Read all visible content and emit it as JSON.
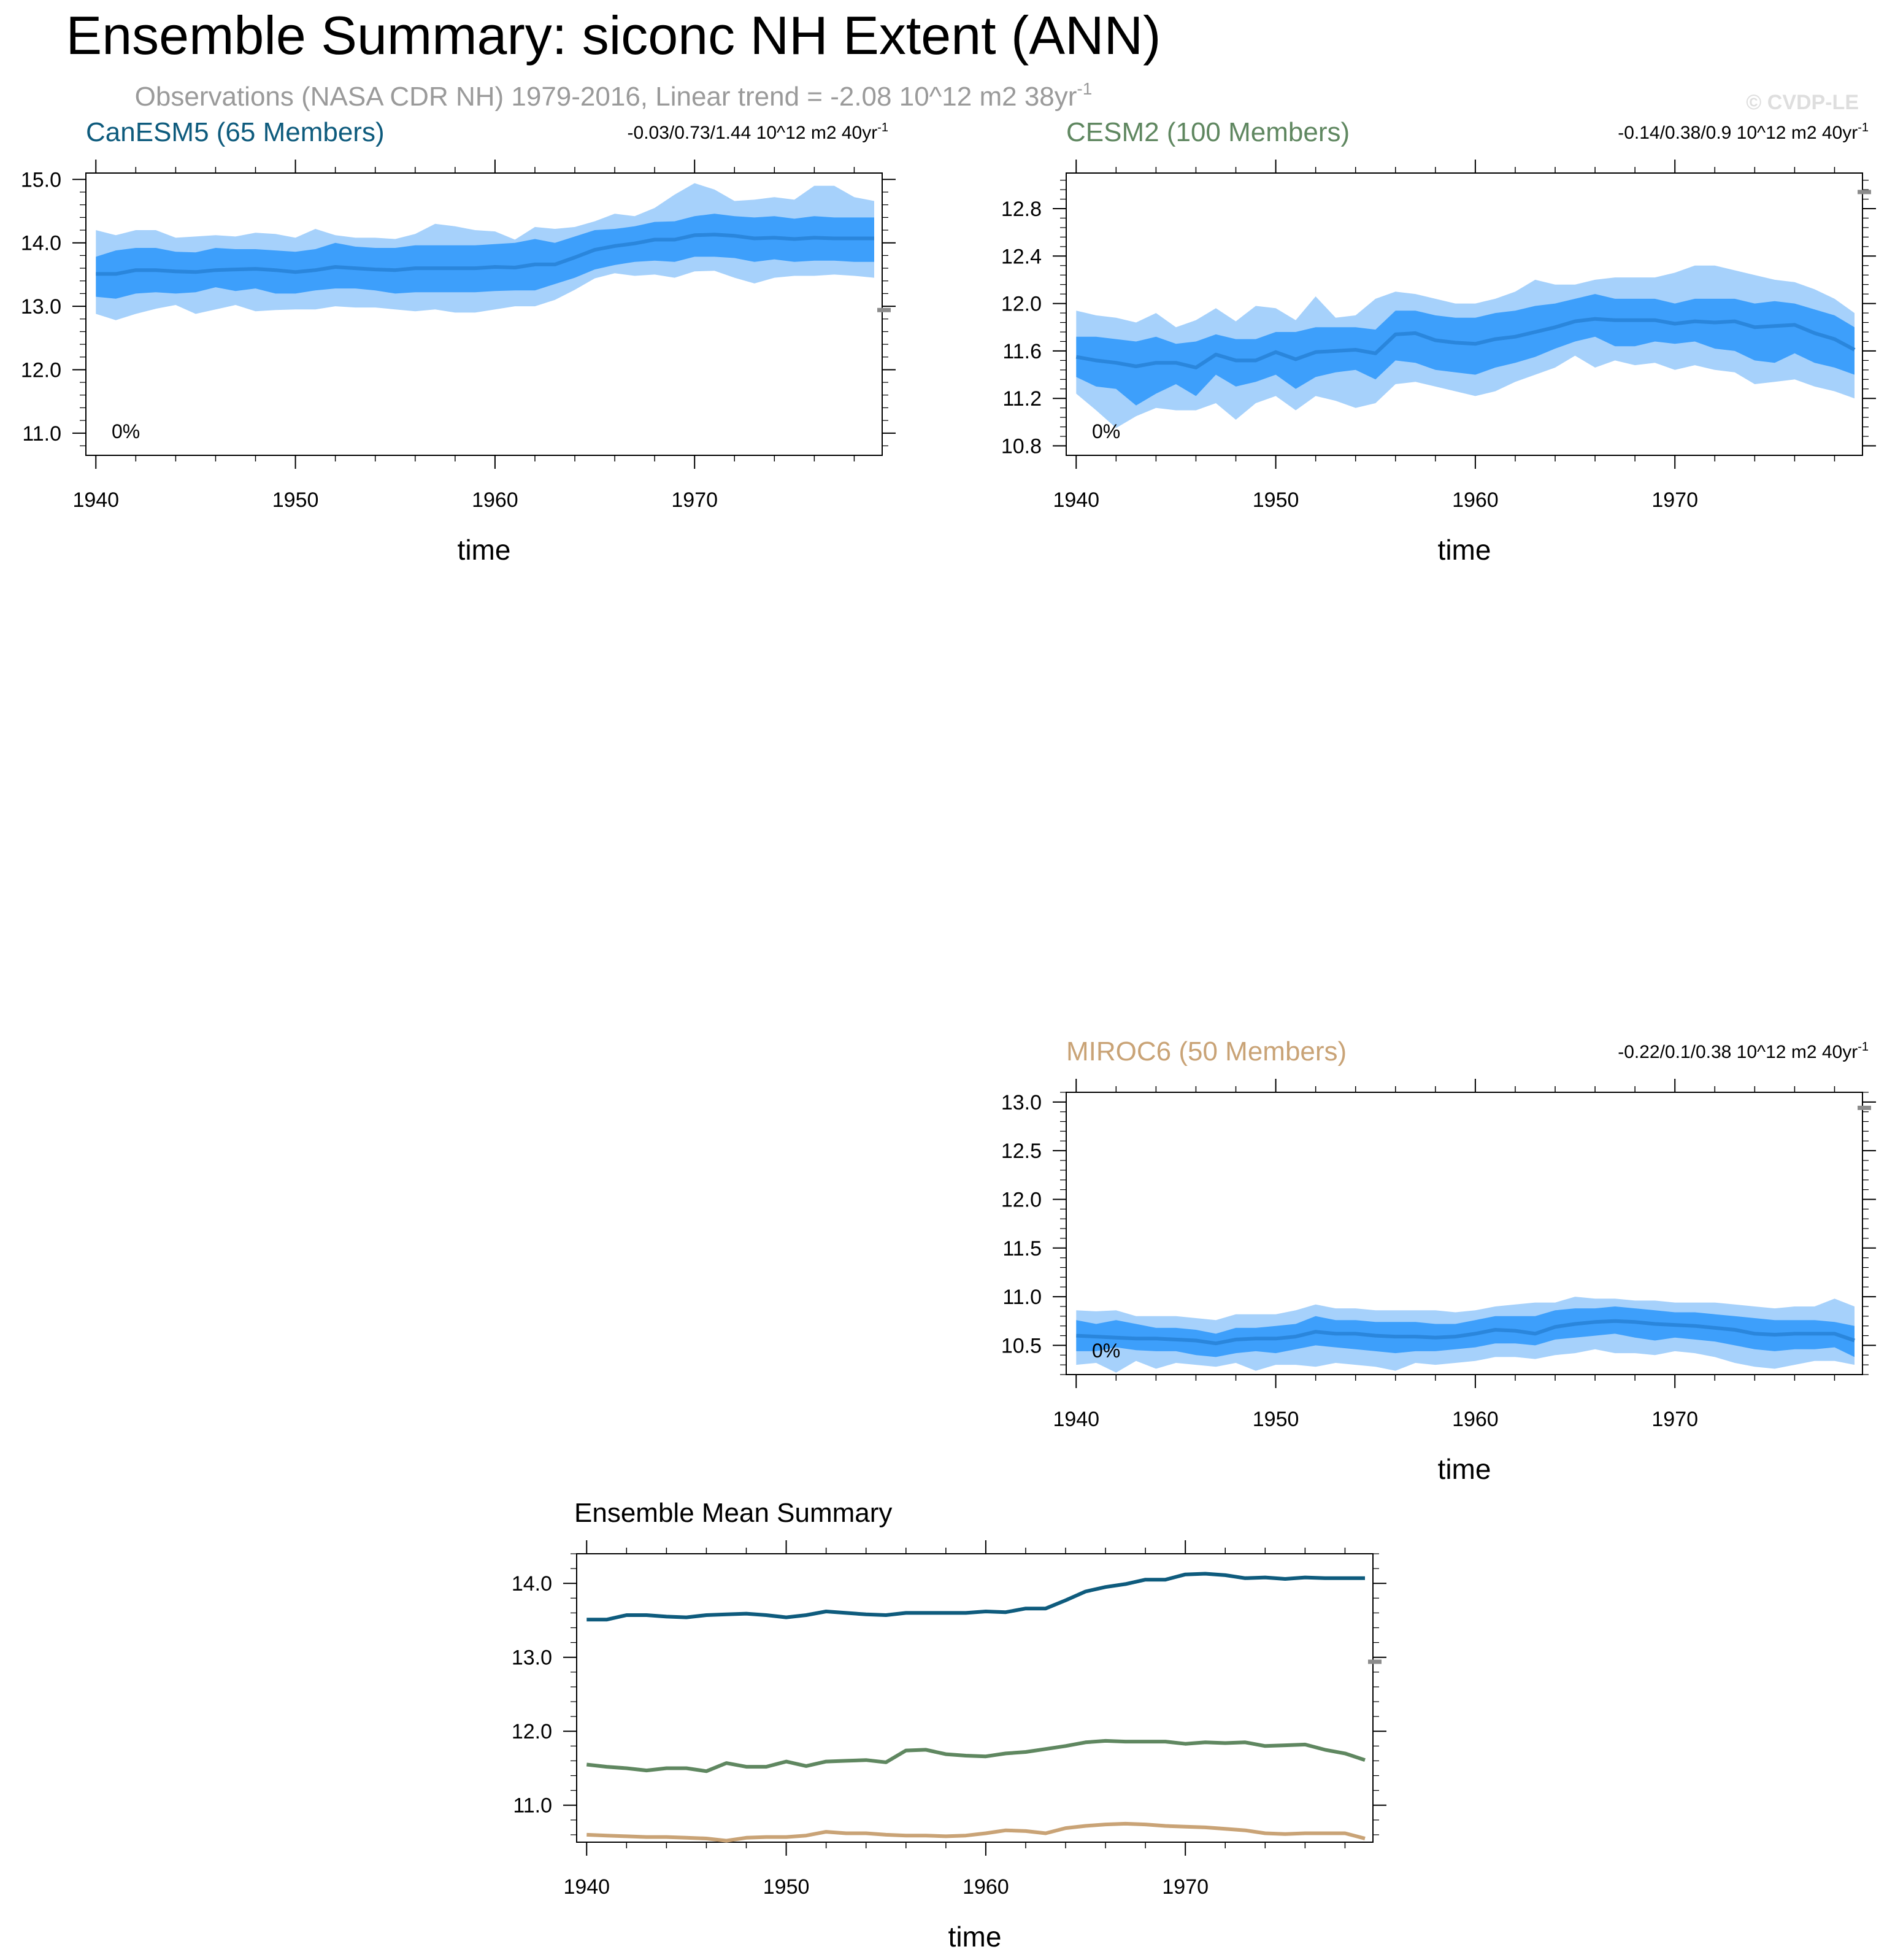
{
  "header": {
    "title": "Ensemble Summary: siconc NH Extent (ANN)",
    "subtitle": "Observations (NASA CDR NH) 1979-2016, Linear trend = -2.08 10^12 m2 38yr",
    "subtitle_sup": "-1",
    "copyright": "© CVDP-LE"
  },
  "colors": {
    "outer_band": "#a6d1fb",
    "inner_band": "#3d9ffb",
    "mean_line": "#2a86dc",
    "obs_marker": "#8c8c8c",
    "CanESM5": "#0e5b7d",
    "CESM2": "#5f8760",
    "MIROC6": "#c9a376"
  },
  "chart_data": [
    {
      "type": "area",
      "model": "CanESM5",
      "title": "CanESM5 (65 Members)",
      "trend_text": "-0.03/0.73/1.44 10^12 m2 40yr",
      "trend_sup": "-1",
      "percent_label": "0%",
      "xlabel": "time",
      "xlim": [
        1939.5,
        1979.4
      ],
      "ylim": [
        10.65,
        15.1
      ],
      "xticks": [
        1940,
        1950,
        1960,
        1970
      ],
      "yticks": [
        11.0,
        12.0,
        13.0,
        14.0,
        15.0
      ],
      "ytick_labels": [
        "11.0",
        "12.0",
        "13.0",
        "14.0",
        "15.0"
      ],
      "obs_value": 12.94,
      "x": [
        1940,
        1941,
        1942,
        1943,
        1944,
        1945,
        1946,
        1947,
        1948,
        1949,
        1950,
        1951,
        1952,
        1953,
        1954,
        1955,
        1956,
        1957,
        1958,
        1959,
        1960,
        1961,
        1962,
        1963,
        1964,
        1965,
        1966,
        1967,
        1968,
        1969,
        1970,
        1971,
        1972,
        1973,
        1974,
        1975,
        1976,
        1977,
        1978,
        1979
      ],
      "mean": [
        13.51,
        13.51,
        13.57,
        13.57,
        13.55,
        13.54,
        13.57,
        13.58,
        13.59,
        13.57,
        13.54,
        13.57,
        13.62,
        13.6,
        13.58,
        13.57,
        13.6,
        13.6,
        13.6,
        13.6,
        13.62,
        13.61,
        13.66,
        13.66,
        13.77,
        13.89,
        13.95,
        13.99,
        14.05,
        14.05,
        14.12,
        14.13,
        14.11,
        14.07,
        14.08,
        14.06,
        14.08,
        14.07,
        14.07,
        14.07
      ],
      "p10": [
        13.15,
        13.12,
        13.2,
        13.22,
        13.2,
        13.22,
        13.3,
        13.24,
        13.28,
        13.2,
        13.2,
        13.25,
        13.28,
        13.28,
        13.25,
        13.2,
        13.22,
        13.22,
        13.22,
        13.22,
        13.24,
        13.25,
        13.25,
        13.35,
        13.45,
        13.58,
        13.65,
        13.7,
        13.72,
        13.7,
        13.78,
        13.78,
        13.76,
        13.7,
        13.74,
        13.7,
        13.72,
        13.72,
        13.7,
        13.7
      ],
      "p90": [
        13.78,
        13.88,
        13.92,
        13.92,
        13.86,
        13.85,
        13.92,
        13.9,
        13.9,
        13.88,
        13.86,
        13.9,
        14.0,
        13.94,
        13.92,
        13.92,
        13.96,
        13.96,
        13.96,
        13.96,
        13.98,
        14.0,
        14.06,
        14.0,
        14.1,
        14.2,
        14.22,
        14.26,
        14.33,
        14.34,
        14.42,
        14.46,
        14.42,
        14.4,
        14.42,
        14.38,
        14.42,
        14.4,
        14.4,
        14.4
      ],
      "min": [
        12.88,
        12.78,
        12.88,
        12.96,
        13.02,
        12.88,
        12.95,
        13.02,
        12.92,
        12.94,
        12.95,
        12.95,
        13.0,
        12.98,
        12.98,
        12.95,
        12.92,
        12.95,
        12.9,
        12.9,
        12.95,
        13.0,
        13.0,
        13.1,
        13.26,
        13.44,
        13.52,
        13.48,
        13.5,
        13.45,
        13.55,
        13.56,
        13.45,
        13.36,
        13.45,
        13.48,
        13.48,
        13.5,
        13.48,
        13.45
      ],
      "max": [
        14.2,
        14.12,
        14.2,
        14.2,
        14.08,
        14.1,
        14.12,
        14.1,
        14.16,
        14.14,
        14.08,
        14.22,
        14.12,
        14.08,
        14.08,
        14.06,
        14.14,
        14.3,
        14.26,
        14.2,
        14.18,
        14.05,
        14.25,
        14.22,
        14.25,
        14.34,
        14.46,
        14.42,
        14.55,
        14.76,
        14.94,
        14.84,
        14.66,
        14.68,
        14.72,
        14.68,
        14.9,
        14.9,
        14.72,
        14.66
      ]
    },
    {
      "type": "area",
      "model": "CESM2",
      "title": "CESM2 (100 Members)",
      "trend_text": "-0.14/0.38/0.9 10^12 m2 40yr",
      "trend_sup": "-1",
      "percent_label": "0%",
      "xlabel": "time",
      "xlim": [
        1939.5,
        1979.4
      ],
      "ylim": [
        10.72,
        13.1
      ],
      "xticks": [
        1940,
        1950,
        1960,
        1970
      ],
      "yticks": [
        10.8,
        11.2,
        11.6,
        12.0,
        12.4,
        12.8
      ],
      "ytick_labels": [
        "10.8",
        "11.2",
        "11.6",
        "12.0",
        "12.4",
        "12.8"
      ],
      "obs_value": 12.94,
      "x": [
        1940,
        1941,
        1942,
        1943,
        1944,
        1945,
        1946,
        1947,
        1948,
        1949,
        1950,
        1951,
        1952,
        1953,
        1954,
        1955,
        1956,
        1957,
        1958,
        1959,
        1960,
        1961,
        1962,
        1963,
        1964,
        1965,
        1966,
        1967,
        1968,
        1969,
        1970,
        1971,
        1972,
        1973,
        1974,
        1975,
        1976,
        1977,
        1978,
        1979
      ],
      "mean": [
        11.55,
        11.52,
        11.5,
        11.47,
        11.5,
        11.5,
        11.46,
        11.57,
        11.52,
        11.52,
        11.59,
        11.53,
        11.59,
        11.6,
        11.61,
        11.58,
        11.74,
        11.75,
        11.69,
        11.67,
        11.66,
        11.7,
        11.72,
        11.76,
        11.8,
        11.85,
        11.87,
        11.86,
        11.86,
        11.86,
        11.83,
        11.85,
        11.84,
        11.85,
        11.8,
        11.81,
        11.82,
        11.75,
        11.7,
        11.61
      ],
      "p10": [
        11.38,
        11.3,
        11.28,
        11.14,
        11.24,
        11.32,
        11.22,
        11.4,
        11.3,
        11.34,
        11.4,
        11.28,
        11.38,
        11.42,
        11.44,
        11.36,
        11.52,
        11.5,
        11.44,
        11.42,
        11.4,
        11.46,
        11.5,
        11.55,
        11.62,
        11.68,
        11.72,
        11.64,
        11.64,
        11.68,
        11.66,
        11.68,
        11.62,
        11.6,
        11.52,
        11.5,
        11.58,
        11.5,
        11.46,
        11.4
      ],
      "p90": [
        11.72,
        11.72,
        11.7,
        11.68,
        11.72,
        11.66,
        11.68,
        11.74,
        11.7,
        11.7,
        11.76,
        11.76,
        11.8,
        11.8,
        11.8,
        11.78,
        11.94,
        11.94,
        11.9,
        11.88,
        11.88,
        11.92,
        11.94,
        11.98,
        12.0,
        12.04,
        12.08,
        12.04,
        12.04,
        12.04,
        12.0,
        12.04,
        12.04,
        12.04,
        12.0,
        12.02,
        12.0,
        11.95,
        11.9,
        11.8
      ],
      "min": [
        11.24,
        11.1,
        10.95,
        11.05,
        11.12,
        11.1,
        11.1,
        11.16,
        11.02,
        11.16,
        11.22,
        11.1,
        11.22,
        11.18,
        11.12,
        11.16,
        11.32,
        11.34,
        11.3,
        11.26,
        11.22,
        11.26,
        11.34,
        11.4,
        11.46,
        11.56,
        11.46,
        11.52,
        11.48,
        11.5,
        11.44,
        11.48,
        11.44,
        11.42,
        11.32,
        11.34,
        11.36,
        11.3,
        11.26,
        11.2
      ],
      "max": [
        11.94,
        11.9,
        11.88,
        11.84,
        11.92,
        11.8,
        11.86,
        11.96,
        11.85,
        11.98,
        11.96,
        11.86,
        12.06,
        11.88,
        11.9,
        12.04,
        12.1,
        12.08,
        12.04,
        12.0,
        12.0,
        12.04,
        12.1,
        12.2,
        12.16,
        12.16,
        12.2,
        12.22,
        12.22,
        12.22,
        12.26,
        12.32,
        12.32,
        12.28,
        12.24,
        12.2,
        12.18,
        12.12,
        12.04,
        11.92
      ]
    },
    {
      "type": "area",
      "model": "MIROC6",
      "title": "MIROC6 (50 Members)",
      "trend_text": "-0.22/0.1/0.38 10^12 m2 40yr",
      "trend_sup": "-1",
      "percent_label": "0%",
      "xlabel": "time",
      "xlim": [
        1939.5,
        1979.4
      ],
      "ylim": [
        10.2,
        13.1
      ],
      "xticks": [
        1940,
        1950,
        1960,
        1970
      ],
      "yticks": [
        10.5,
        11.0,
        11.5,
        12.0,
        12.5,
        13.0
      ],
      "ytick_labels": [
        "10.5",
        "11.0",
        "11.5",
        "12.0",
        "12.5",
        "13.0"
      ],
      "obs_value": 12.94,
      "x": [
        1940,
        1941,
        1942,
        1943,
        1944,
        1945,
        1946,
        1947,
        1948,
        1949,
        1950,
        1951,
        1952,
        1953,
        1954,
        1955,
        1956,
        1957,
        1958,
        1959,
        1960,
        1961,
        1962,
        1963,
        1964,
        1965,
        1966,
        1967,
        1968,
        1969,
        1970,
        1971,
        1972,
        1973,
        1974,
        1975,
        1976,
        1977,
        1978,
        1979
      ],
      "mean": [
        10.6,
        10.59,
        10.58,
        10.57,
        10.57,
        10.56,
        10.55,
        10.52,
        10.56,
        10.57,
        10.57,
        10.59,
        10.64,
        10.62,
        10.62,
        10.6,
        10.59,
        10.59,
        10.58,
        10.59,
        10.62,
        10.66,
        10.65,
        10.62,
        10.69,
        10.72,
        10.74,
        10.75,
        10.74,
        10.72,
        10.71,
        10.7,
        10.68,
        10.66,
        10.62,
        10.61,
        10.62,
        10.62,
        10.62,
        10.55
      ],
      "p10": [
        10.44,
        10.44,
        10.48,
        10.45,
        10.44,
        10.44,
        10.4,
        10.38,
        10.42,
        10.44,
        10.42,
        10.46,
        10.5,
        10.48,
        10.46,
        10.44,
        10.42,
        10.44,
        10.44,
        10.46,
        10.48,
        10.52,
        10.52,
        10.5,
        10.56,
        10.58,
        10.6,
        10.62,
        10.58,
        10.55,
        10.58,
        10.56,
        10.54,
        10.5,
        10.46,
        10.44,
        10.46,
        10.46,
        10.48,
        10.38
      ],
      "p90": [
        10.76,
        10.72,
        10.76,
        10.72,
        10.68,
        10.68,
        10.66,
        10.62,
        10.68,
        10.68,
        10.7,
        10.72,
        10.8,
        10.76,
        10.76,
        10.74,
        10.74,
        10.74,
        10.72,
        10.72,
        10.76,
        10.8,
        10.8,
        10.8,
        10.86,
        10.88,
        10.88,
        10.9,
        10.88,
        10.86,
        10.84,
        10.84,
        10.82,
        10.8,
        10.78,
        10.76,
        10.76,
        10.76,
        10.74,
        10.7
      ],
      "min": [
        10.3,
        10.32,
        10.22,
        10.34,
        10.26,
        10.32,
        10.3,
        10.28,
        10.32,
        10.24,
        10.3,
        10.3,
        10.28,
        10.32,
        10.3,
        10.28,
        10.24,
        10.32,
        10.3,
        10.32,
        10.34,
        10.38,
        10.38,
        10.36,
        10.4,
        10.42,
        10.46,
        10.42,
        10.42,
        10.4,
        10.44,
        10.42,
        10.38,
        10.32,
        10.28,
        10.26,
        10.3,
        10.34,
        10.34,
        10.3
      ],
      "max": [
        10.86,
        10.85,
        10.86,
        10.8,
        10.8,
        10.8,
        10.78,
        10.76,
        10.82,
        10.82,
        10.82,
        10.86,
        10.92,
        10.88,
        10.88,
        10.86,
        10.86,
        10.86,
        10.86,
        10.84,
        10.86,
        10.9,
        10.92,
        10.94,
        10.94,
        11.0,
        10.98,
        10.98,
        10.96,
        10.96,
        10.94,
        10.94,
        10.94,
        10.92,
        10.9,
        10.88,
        10.9,
        10.9,
        10.98,
        10.9
      ]
    },
    {
      "type": "line",
      "title": "Ensemble Mean Summary",
      "xlabel": "time",
      "xlim": [
        1939.5,
        1979.4
      ],
      "ylim": [
        10.5,
        14.4
      ],
      "xticks": [
        1940,
        1950,
        1960,
        1970
      ],
      "yticks": [
        11.0,
        12.0,
        13.0,
        14.0
      ],
      "ytick_labels": [
        "11.0",
        "12.0",
        "13.0",
        "14.0"
      ],
      "obs_value": 12.94,
      "series_refs": [
        "CanESM5",
        "CESM2",
        "MIROC6"
      ]
    }
  ]
}
